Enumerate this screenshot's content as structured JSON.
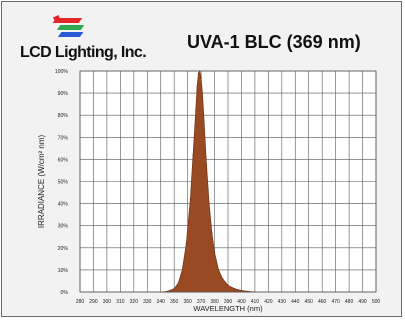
{
  "header": {
    "brand": "LCD Lighting, Inc.",
    "logo_icon": "rgb-light-rays-logo-icon",
    "title": "UVA-1 BLC (369 nm)"
  },
  "colors": {
    "curve_fill": "#9a4a22",
    "curve_stroke": "#6a2c10",
    "grid": "#555555",
    "background": "#f2f2f2",
    "logo_red": "#e4262b",
    "logo_green": "#2fa84f",
    "logo_blue": "#2a5bd7"
  },
  "chart_data": {
    "type": "area",
    "xlabel": "WAVELENGTH (nm)",
    "ylabel": "IRRADIANCE (W/cm² nm)",
    "xlim": [
      280,
      500
    ],
    "ylim": [
      0,
      100
    ],
    "x_ticks": [
      280,
      290,
      300,
      310,
      320,
      330,
      340,
      350,
      360,
      370,
      380,
      390,
      400,
      410,
      420,
      430,
      440,
      450,
      460,
      470,
      480,
      490,
      500
    ],
    "y_ticks": [
      "0%",
      "10%",
      "20%",
      "30%",
      "40%",
      "50%",
      "60%",
      "70%",
      "80%",
      "90%",
      "100%"
    ],
    "grid": true,
    "x": [
      340,
      345,
      350,
      353,
      356,
      359,
      362,
      364,
      366,
      367,
      368,
      369,
      370,
      371,
      372,
      374,
      376,
      378,
      380,
      383,
      386,
      390,
      395,
      400,
      405,
      410
    ],
    "y": [
      0,
      0.3,
      1.5,
      4,
      10,
      22,
      42,
      62,
      82,
      93,
      99,
      100,
      97,
      90,
      80,
      58,
      40,
      27,
      18,
      10,
      6,
      3,
      1.5,
      0.7,
      0.3,
      0
    ]
  }
}
